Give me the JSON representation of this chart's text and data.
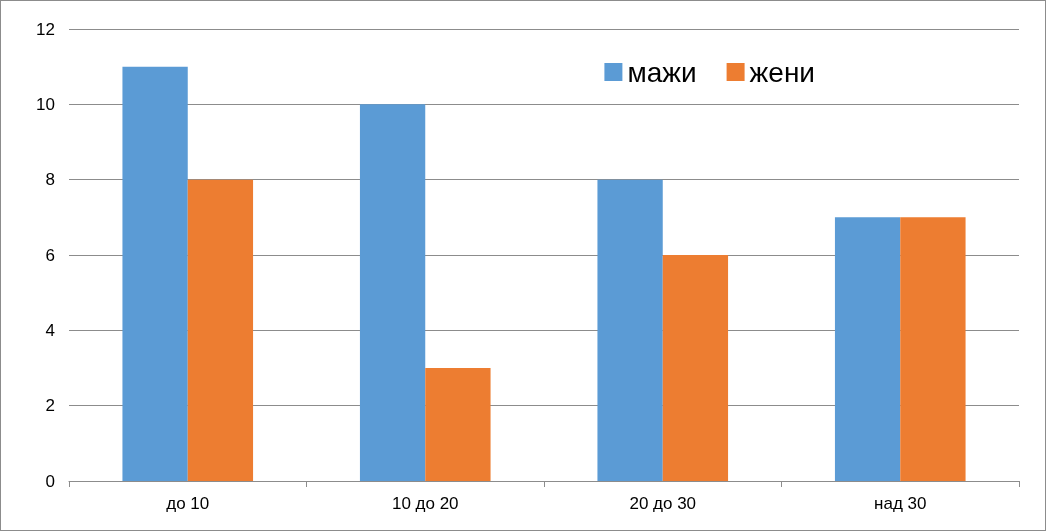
{
  "chart_data": {
    "type": "bar",
    "categories": [
      "до 10",
      "10 до 20",
      "20 до 30",
      "над 30"
    ],
    "series": [
      {
        "name": "мажи",
        "color": "#5b9bd5",
        "values": [
          11,
          10,
          8,
          7
        ]
      },
      {
        "name": "жени",
        "color": "#ed7d31",
        "values": [
          8,
          3,
          6,
          7
        ]
      }
    ],
    "ylim": [
      0,
      12
    ],
    "yticks": [
      0,
      2,
      4,
      6,
      8,
      10,
      12
    ],
    "grid": "y",
    "legend": "top right"
  }
}
